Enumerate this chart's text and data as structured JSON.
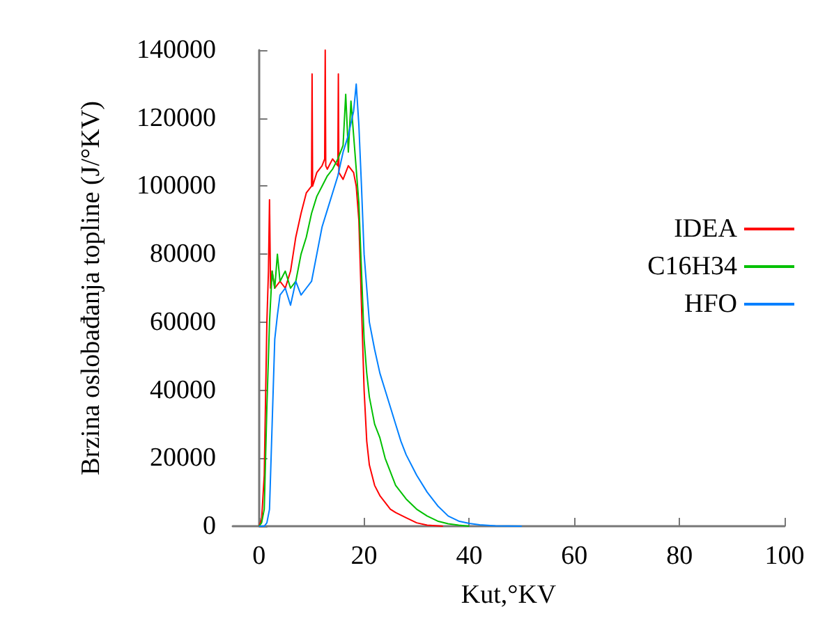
{
  "chart_data": {
    "type": "line",
    "xlabel": "Kut,°KV",
    "ylabel": "Brzina oslobađanja topline (J/°KV)",
    "xlim": [
      -5,
      100
    ],
    "xticks": [
      0,
      20,
      40,
      60,
      80,
      100
    ],
    "ylim": [
      0,
      140000
    ],
    "yticks": [
      0,
      20000,
      40000,
      60000,
      80000,
      100000,
      120000,
      140000
    ],
    "grid": false,
    "legend": "right",
    "marker": "none",
    "line_style": "solid",
    "series": [
      {
        "name": "IDEA",
        "color": "#ff0000",
        "x": [
          0,
          0.5,
          1,
          1.5,
          1.8,
          2,
          2.2,
          2.5,
          3,
          4,
          5,
          6,
          7,
          8,
          9,
          10,
          10.1,
          10.2,
          11,
          12,
          12.5,
          12.6,
          12.7,
          13,
          14,
          15,
          15.1,
          15.2,
          16,
          17,
          18,
          18.5,
          19,
          19.5,
          20,
          20.5,
          21,
          22,
          23,
          24,
          25,
          26,
          28,
          30,
          32,
          35
        ],
        "values": [
          0,
          2000,
          15000,
          60000,
          75000,
          96000,
          70000,
          75000,
          70000,
          72000,
          70000,
          75000,
          85000,
          92000,
          98000,
          100000,
          133000,
          100000,
          104000,
          106000,
          108000,
          140000,
          106000,
          105000,
          108000,
          106000,
          133000,
          104000,
          102000,
          106000,
          104000,
          100000,
          90000,
          65000,
          40000,
          25000,
          18000,
          12000,
          9000,
          7000,
          5000,
          4000,
          2500,
          1000,
          300,
          0
        ]
      },
      {
        "name": "C16H34",
        "color": "#00c000",
        "x": [
          0,
          0.5,
          1,
          1.5,
          2,
          2.5,
          3,
          3.5,
          4,
          5,
          6,
          7,
          8,
          9,
          10,
          11,
          12,
          13,
          14,
          15,
          16,
          16.5,
          17,
          17.5,
          18,
          18.5,
          19,
          19.5,
          20,
          20.5,
          21,
          22,
          23,
          24,
          25,
          26,
          28,
          30,
          32,
          34,
          36,
          38,
          40
        ],
        "values": [
          0,
          1000,
          5000,
          35000,
          60000,
          75000,
          70000,
          80000,
          72000,
          75000,
          70000,
          72000,
          80000,
          85000,
          92000,
          97000,
          100000,
          103000,
          105000,
          108000,
          112000,
          127000,
          110000,
          125000,
          115000,
          105000,
          95000,
          75000,
          55000,
          45000,
          38000,
          30000,
          26000,
          20000,
          16000,
          12000,
          8000,
          5000,
          3000,
          1500,
          700,
          300,
          0
        ]
      },
      {
        "name": "HFO",
        "color": "#0080ff",
        "x": [
          0,
          1,
          1.5,
          2,
          2.5,
          3,
          3.5,
          4,
          5,
          6,
          7,
          8,
          9,
          10,
          11,
          12,
          13,
          14,
          15,
          16,
          17,
          18,
          18.5,
          19,
          19.5,
          20,
          20.5,
          21,
          22,
          23,
          24,
          25,
          26,
          27,
          28,
          30,
          32,
          34,
          36,
          38,
          40,
          42,
          45,
          50
        ],
        "values": [
          0,
          0,
          1000,
          5000,
          30000,
          55000,
          62000,
          68000,
          70000,
          65000,
          72000,
          68000,
          70000,
          72000,
          80000,
          88000,
          93000,
          98000,
          103000,
          110000,
          115000,
          122000,
          130000,
          118000,
          100000,
          80000,
          70000,
          60000,
          52000,
          45000,
          40000,
          35000,
          30000,
          25000,
          21000,
          15000,
          10000,
          6000,
          3000,
          1500,
          800,
          400,
          100,
          0
        ]
      }
    ]
  }
}
